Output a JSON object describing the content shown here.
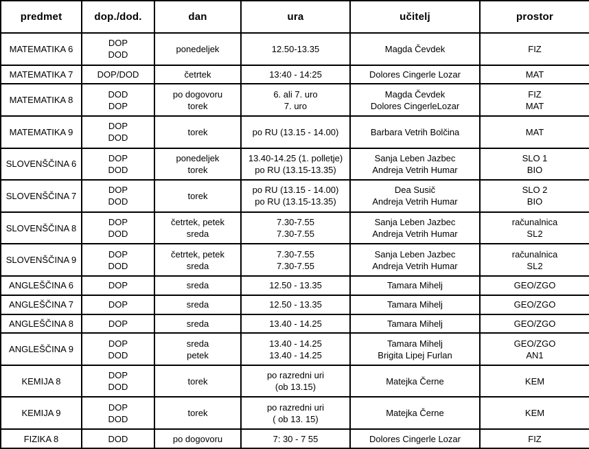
{
  "table": {
    "columns": [
      "predmet",
      "dop./dod.",
      "dan",
      "ura",
      "učitelj",
      "prostor"
    ],
    "rows": [
      {
        "cells": [
          "MATEMATIKA 6",
          "DOP\nDOD",
          "ponedeljek",
          "12.50-13.35",
          "Magda Čevdek",
          "FIZ"
        ]
      },
      {
        "cells": [
          "MATEMATIKA 7",
          "DOP/DOD",
          "četrtek",
          "13:40 - 14:25",
          "Dolores Cingerle Lozar",
          "MAT"
        ]
      },
      {
        "cells": [
          "MATEMATIKA 8",
          "DOD\nDOP",
          "po dogovoru\ntorek",
          "6. ali 7. uro\n7. uro",
          "Magda Čevdek\nDolores CingerleLozar",
          "FIZ\nMAT"
        ]
      },
      {
        "cells": [
          "MATEMATIKA 9",
          "DOP\nDOD",
          "torek",
          "po RU (13.15 - 14.00)",
          "Barbara Vetrih Bolčina",
          "MAT"
        ]
      },
      {
        "cells": [
          "SLOVENŠČINA 6",
          "DOP\nDOD",
          "ponedeljek\ntorek",
          "13.40-14.25 (1. polletje)\npo RU (13.15-13.35)",
          "Sanja Leben Jazbec\nAndreja Vetrih Humar",
          "SLO 1\nBIO"
        ]
      },
      {
        "cells": [
          "SLOVENŠČINA 7",
          "DOP\nDOD",
          "torek",
          "po RU (13.15 - 14.00)\npo RU (13.15-13.35)",
          "Dea Susič\nAndreja Vetrih Humar",
          "SLO 2\nBIO"
        ]
      },
      {
        "cells": [
          "SLOVENŠČINA 8",
          "DOP\nDOD",
          "četrtek, petek\nsreda",
          "7.30-7.55\n7.30-7.55",
          "Sanja Leben Jazbec\nAndreja Vetrih Humar",
          "računalnica\nSL2"
        ]
      },
      {
        "cells": [
          "SLOVENŠČINA 9",
          "DOP\nDOD",
          "četrtek, petek\nsreda",
          "7.30-7.55\n7.30-7.55",
          "Sanja Leben Jazbec\nAndreja Vetrih Humar",
          "računalnica\nSL2"
        ]
      },
      {
        "cells": [
          "ANGLEŠČINA 6",
          "DOP",
          "sreda",
          "12.50 - 13.35",
          "Tamara Mihelj",
          "GEO/ZGO"
        ]
      },
      {
        "cells": [
          "ANGLEŠČINA 7",
          "DOP",
          "sreda",
          "12.50 - 13.35",
          "Tamara Mihelj",
          "GEO/ZGO"
        ]
      },
      {
        "cells": [
          "ANGLEŠČINA 8",
          "DOP",
          "sreda",
          "13.40 - 14.25",
          "Tamara Mihelj",
          "GEO/ZGO"
        ]
      },
      {
        "cells": [
          "ANGLEŠČINA 9",
          "DOP\nDOD",
          "sreda\npetek",
          "13.40 - 14.25\n13.40 - 14.25",
          "Tamara Mihelj\nBrigita Lipej Furlan",
          "GEO/ZGO\nAN1"
        ]
      },
      {
        "cells": [
          "KEMIJA 8",
          "DOP\nDOD",
          "torek",
          "po razredni uri\n(ob 13.15)",
          "Matejka Černe",
          "KEM"
        ]
      },
      {
        "cells": [
          "KEMIJA 9",
          "DOP\nDOD",
          "torek",
          "po razredni uri\n( ob 13. 15)",
          "Matejka Černe",
          "KEM"
        ]
      },
      {
        "cells": [
          "FIZIKA 8",
          "DOD",
          "po dogovoru",
          "7: 30 - 7 55",
          "Dolores Cingerle Lozar",
          "FIZ"
        ]
      }
    ],
    "colors": {
      "text": "#000000",
      "border": "#000000",
      "background": "#ffffff"
    }
  }
}
